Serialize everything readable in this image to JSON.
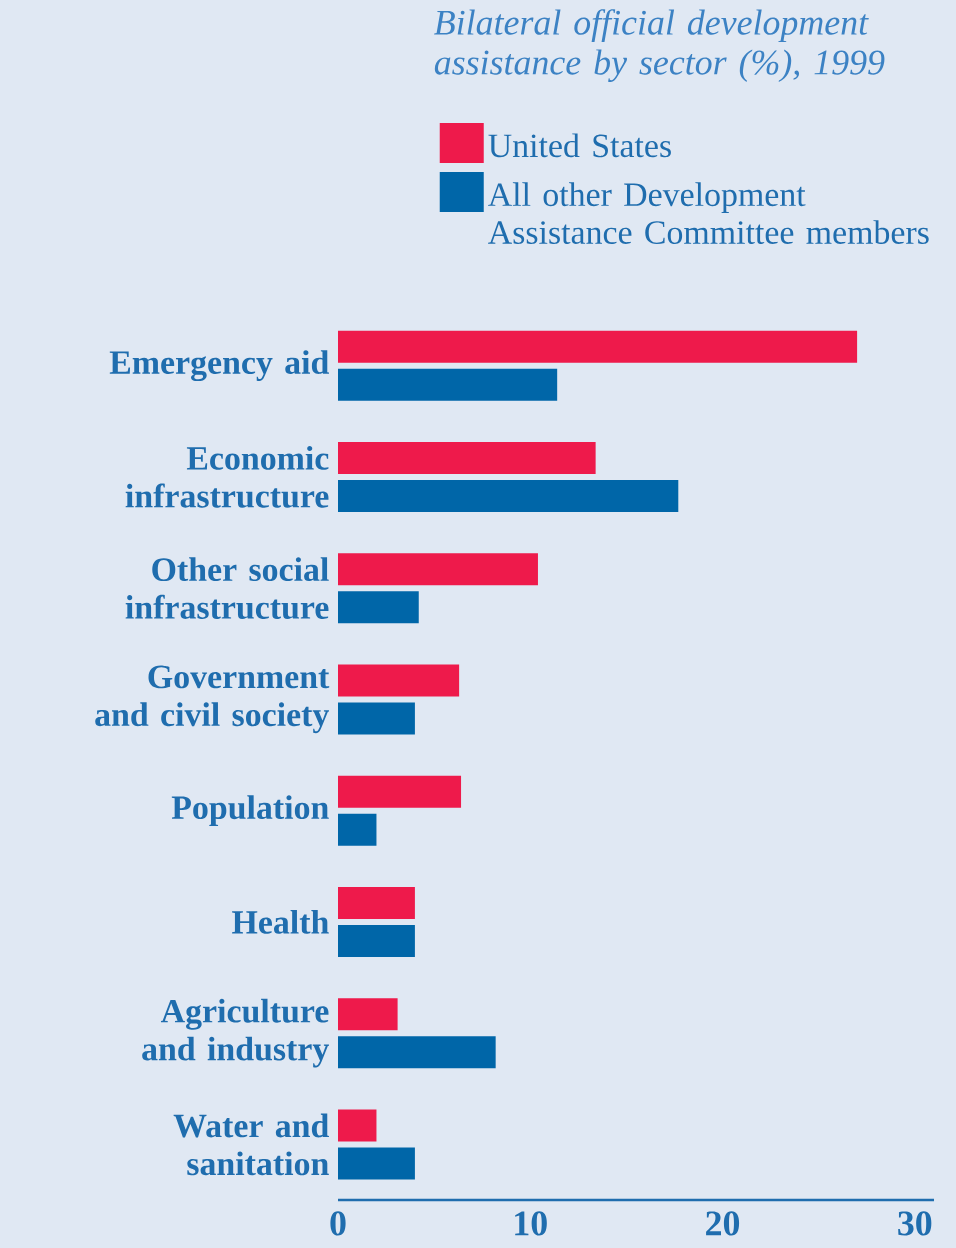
{
  "chart_data": {
    "type": "bar",
    "orientation": "horizontal",
    "title": "*Bilateral official development assistance by sector (%), 1999*",
    "categories": [
      "Emergency aid",
      "Economic infrastructure",
      "Other social infrastructure",
      "Government and civil society",
      "Population",
      "Health",
      "Agriculture and industry",
      "Water and sanitation"
    ],
    "series": [
      {
        "name": "United States",
        "color": "#ee1a4b",
        "values": [
          27.0,
          13.4,
          10.4,
          6.3,
          6.4,
          4.0,
          3.1,
          2.0
        ]
      },
      {
        "name": "All other Development Assistance Committee members",
        "color": "#0066a8",
        "values": [
          11.4,
          17.7,
          4.2,
          4.0,
          2.0,
          4.0,
          8.2,
          4.0
        ]
      }
    ],
    "xlim": [
      0,
      31
    ],
    "xticks": [
      0,
      10,
      20,
      30
    ],
    "grid": false,
    "legend": "top"
  }
}
